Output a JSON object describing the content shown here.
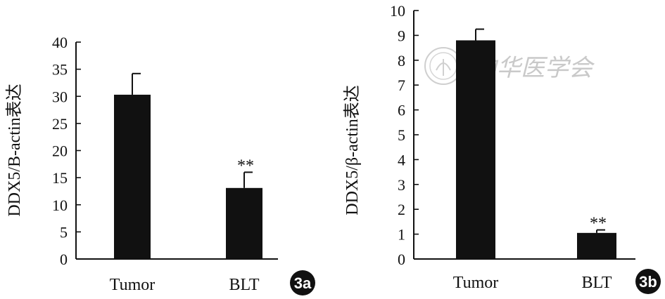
{
  "chart_data": [
    {
      "type": "bar",
      "panel_label": "3a",
      "categories": [
        "Tumor",
        "BLT"
      ],
      "values": [
        30.3,
        13.1
      ],
      "error": [
        3.9,
        2.9
      ],
      "significance": [
        "",
        "**"
      ],
      "ylabel": "DDX5/B-actin表达",
      "xlabel": "",
      "ylim": [
        0,
        40
      ],
      "yticks": [
        "0",
        "5",
        "10",
        "15",
        "20",
        "25",
        "30",
        "35",
        "40"
      ],
      "grid": false,
      "bar_color": "#111111"
    },
    {
      "type": "bar",
      "panel_label": "3b",
      "categories": [
        "Tumor",
        "BLT"
      ],
      "values": [
        8.8,
        1.05
      ],
      "error": [
        0.45,
        0.12
      ],
      "significance": [
        "",
        "**"
      ],
      "ylabel": "DDX5/β-actin表达",
      "xlabel": "",
      "ylim": [
        0,
        10
      ],
      "yticks": [
        "0",
        "1",
        "2",
        "3",
        "4",
        "5",
        "6",
        "7",
        "8",
        "9",
        "10"
      ],
      "grid": false,
      "bar_color": "#111111"
    }
  ],
  "watermark": {
    "text": "中华医学会"
  }
}
